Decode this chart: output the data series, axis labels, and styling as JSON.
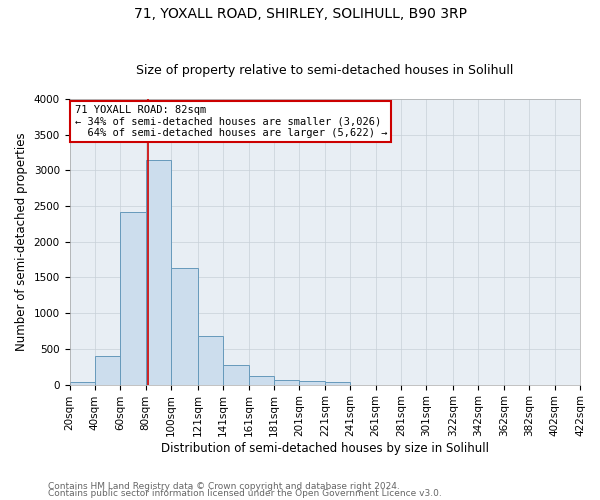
{
  "title": "71, YOXALL ROAD, SHIRLEY, SOLIHULL, B90 3RP",
  "subtitle": "Size of property relative to semi-detached houses in Solihull",
  "xlabel": "Distribution of semi-detached houses by size in Solihull",
  "ylabel": "Number of semi-detached properties",
  "footnote1": "Contains HM Land Registry data © Crown copyright and database right 2024.",
  "footnote2": "Contains public sector information licensed under the Open Government Licence v3.0.",
  "bar_edges": [
    20,
    40,
    60,
    80,
    100,
    121,
    141,
    161,
    181,
    201,
    221,
    241,
    261,
    281,
    301,
    322,
    342,
    362,
    382,
    402,
    422
  ],
  "bar_heights": [
    30,
    400,
    2420,
    3150,
    1630,
    680,
    280,
    120,
    60,
    50,
    30,
    0,
    0,
    0,
    0,
    0,
    0,
    0,
    0,
    0
  ],
  "bar_color": "#ccdded",
  "bar_edgecolor": "#6699bb",
  "property_size": 82,
  "red_line_color": "#cc0000",
  "annotation_text": "71 YOXALL ROAD: 82sqm\n← 34% of semi-detached houses are smaller (3,026)\n  64% of semi-detached houses are larger (5,622) →",
  "annotation_box_color": "#cc0000",
  "ylim": [
    0,
    4000
  ],
  "yticks": [
    0,
    500,
    1000,
    1500,
    2000,
    2500,
    3000,
    3500,
    4000
  ],
  "grid_color": "#c8d0d8",
  "background_color": "#e8eef4",
  "title_fontsize": 10,
  "subtitle_fontsize": 9,
  "xlabel_fontsize": 8.5,
  "ylabel_fontsize": 8.5,
  "tick_fontsize": 7.5,
  "footnote_fontsize": 6.5
}
